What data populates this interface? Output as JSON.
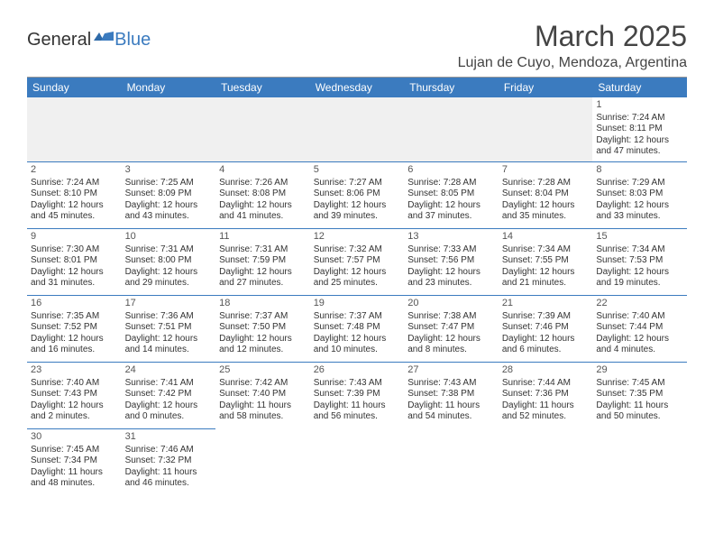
{
  "logo": {
    "general": "General",
    "blue": "Blue"
  },
  "title": "March 2025",
  "location": "Lujan de Cuyo, Mendoza, Argentina",
  "colors": {
    "header_bg": "#3b7bbf",
    "border": "#3b7bbf"
  },
  "weekdays": [
    "Sunday",
    "Monday",
    "Tuesday",
    "Wednesday",
    "Thursday",
    "Friday",
    "Saturday"
  ],
  "days": {
    "1": {
      "num": "1",
      "sunrise": "Sunrise: 7:24 AM",
      "sunset": "Sunset: 8:11 PM",
      "day1": "Daylight: 12 hours",
      "day2": "and 47 minutes."
    },
    "2": {
      "num": "2",
      "sunrise": "Sunrise: 7:24 AM",
      "sunset": "Sunset: 8:10 PM",
      "day1": "Daylight: 12 hours",
      "day2": "and 45 minutes."
    },
    "3": {
      "num": "3",
      "sunrise": "Sunrise: 7:25 AM",
      "sunset": "Sunset: 8:09 PM",
      "day1": "Daylight: 12 hours",
      "day2": "and 43 minutes."
    },
    "4": {
      "num": "4",
      "sunrise": "Sunrise: 7:26 AM",
      "sunset": "Sunset: 8:08 PM",
      "day1": "Daylight: 12 hours",
      "day2": "and 41 minutes."
    },
    "5": {
      "num": "5",
      "sunrise": "Sunrise: 7:27 AM",
      "sunset": "Sunset: 8:06 PM",
      "day1": "Daylight: 12 hours",
      "day2": "and 39 minutes."
    },
    "6": {
      "num": "6",
      "sunrise": "Sunrise: 7:28 AM",
      "sunset": "Sunset: 8:05 PM",
      "day1": "Daylight: 12 hours",
      "day2": "and 37 minutes."
    },
    "7": {
      "num": "7",
      "sunrise": "Sunrise: 7:28 AM",
      "sunset": "Sunset: 8:04 PM",
      "day1": "Daylight: 12 hours",
      "day2": "and 35 minutes."
    },
    "8": {
      "num": "8",
      "sunrise": "Sunrise: 7:29 AM",
      "sunset": "Sunset: 8:03 PM",
      "day1": "Daylight: 12 hours",
      "day2": "and 33 minutes."
    },
    "9": {
      "num": "9",
      "sunrise": "Sunrise: 7:30 AM",
      "sunset": "Sunset: 8:01 PM",
      "day1": "Daylight: 12 hours",
      "day2": "and 31 minutes."
    },
    "10": {
      "num": "10",
      "sunrise": "Sunrise: 7:31 AM",
      "sunset": "Sunset: 8:00 PM",
      "day1": "Daylight: 12 hours",
      "day2": "and 29 minutes."
    },
    "11": {
      "num": "11",
      "sunrise": "Sunrise: 7:31 AM",
      "sunset": "Sunset: 7:59 PM",
      "day1": "Daylight: 12 hours",
      "day2": "and 27 minutes."
    },
    "12": {
      "num": "12",
      "sunrise": "Sunrise: 7:32 AM",
      "sunset": "Sunset: 7:57 PM",
      "day1": "Daylight: 12 hours",
      "day2": "and 25 minutes."
    },
    "13": {
      "num": "13",
      "sunrise": "Sunrise: 7:33 AM",
      "sunset": "Sunset: 7:56 PM",
      "day1": "Daylight: 12 hours",
      "day2": "and 23 minutes."
    },
    "14": {
      "num": "14",
      "sunrise": "Sunrise: 7:34 AM",
      "sunset": "Sunset: 7:55 PM",
      "day1": "Daylight: 12 hours",
      "day2": "and 21 minutes."
    },
    "15": {
      "num": "15",
      "sunrise": "Sunrise: 7:34 AM",
      "sunset": "Sunset: 7:53 PM",
      "day1": "Daylight: 12 hours",
      "day2": "and 19 minutes."
    },
    "16": {
      "num": "16",
      "sunrise": "Sunrise: 7:35 AM",
      "sunset": "Sunset: 7:52 PM",
      "day1": "Daylight: 12 hours",
      "day2": "and 16 minutes."
    },
    "17": {
      "num": "17",
      "sunrise": "Sunrise: 7:36 AM",
      "sunset": "Sunset: 7:51 PM",
      "day1": "Daylight: 12 hours",
      "day2": "and 14 minutes."
    },
    "18": {
      "num": "18",
      "sunrise": "Sunrise: 7:37 AM",
      "sunset": "Sunset: 7:50 PM",
      "day1": "Daylight: 12 hours",
      "day2": "and 12 minutes."
    },
    "19": {
      "num": "19",
      "sunrise": "Sunrise: 7:37 AM",
      "sunset": "Sunset: 7:48 PM",
      "day1": "Daylight: 12 hours",
      "day2": "and 10 minutes."
    },
    "20": {
      "num": "20",
      "sunrise": "Sunrise: 7:38 AM",
      "sunset": "Sunset: 7:47 PM",
      "day1": "Daylight: 12 hours",
      "day2": "and 8 minutes."
    },
    "21": {
      "num": "21",
      "sunrise": "Sunrise: 7:39 AM",
      "sunset": "Sunset: 7:46 PM",
      "day1": "Daylight: 12 hours",
      "day2": "and 6 minutes."
    },
    "22": {
      "num": "22",
      "sunrise": "Sunrise: 7:40 AM",
      "sunset": "Sunset: 7:44 PM",
      "day1": "Daylight: 12 hours",
      "day2": "and 4 minutes."
    },
    "23": {
      "num": "23",
      "sunrise": "Sunrise: 7:40 AM",
      "sunset": "Sunset: 7:43 PM",
      "day1": "Daylight: 12 hours",
      "day2": "and 2 minutes."
    },
    "24": {
      "num": "24",
      "sunrise": "Sunrise: 7:41 AM",
      "sunset": "Sunset: 7:42 PM",
      "day1": "Daylight: 12 hours",
      "day2": "and 0 minutes."
    },
    "25": {
      "num": "25",
      "sunrise": "Sunrise: 7:42 AM",
      "sunset": "Sunset: 7:40 PM",
      "day1": "Daylight: 11 hours",
      "day2": "and 58 minutes."
    },
    "26": {
      "num": "26",
      "sunrise": "Sunrise: 7:43 AM",
      "sunset": "Sunset: 7:39 PM",
      "day1": "Daylight: 11 hours",
      "day2": "and 56 minutes."
    },
    "27": {
      "num": "27",
      "sunrise": "Sunrise: 7:43 AM",
      "sunset": "Sunset: 7:38 PM",
      "day1": "Daylight: 11 hours",
      "day2": "and 54 minutes."
    },
    "28": {
      "num": "28",
      "sunrise": "Sunrise: 7:44 AM",
      "sunset": "Sunset: 7:36 PM",
      "day1": "Daylight: 11 hours",
      "day2": "and 52 minutes."
    },
    "29": {
      "num": "29",
      "sunrise": "Sunrise: 7:45 AM",
      "sunset": "Sunset: 7:35 PM",
      "day1": "Daylight: 11 hours",
      "day2": "and 50 minutes."
    },
    "30": {
      "num": "30",
      "sunrise": "Sunrise: 7:45 AM",
      "sunset": "Sunset: 7:34 PM",
      "day1": "Daylight: 11 hours",
      "day2": "and 48 minutes."
    },
    "31": {
      "num": "31",
      "sunrise": "Sunrise: 7:46 AM",
      "sunset": "Sunset: 7:32 PM",
      "day1": "Daylight: 11 hours",
      "day2": "and 46 minutes."
    }
  }
}
